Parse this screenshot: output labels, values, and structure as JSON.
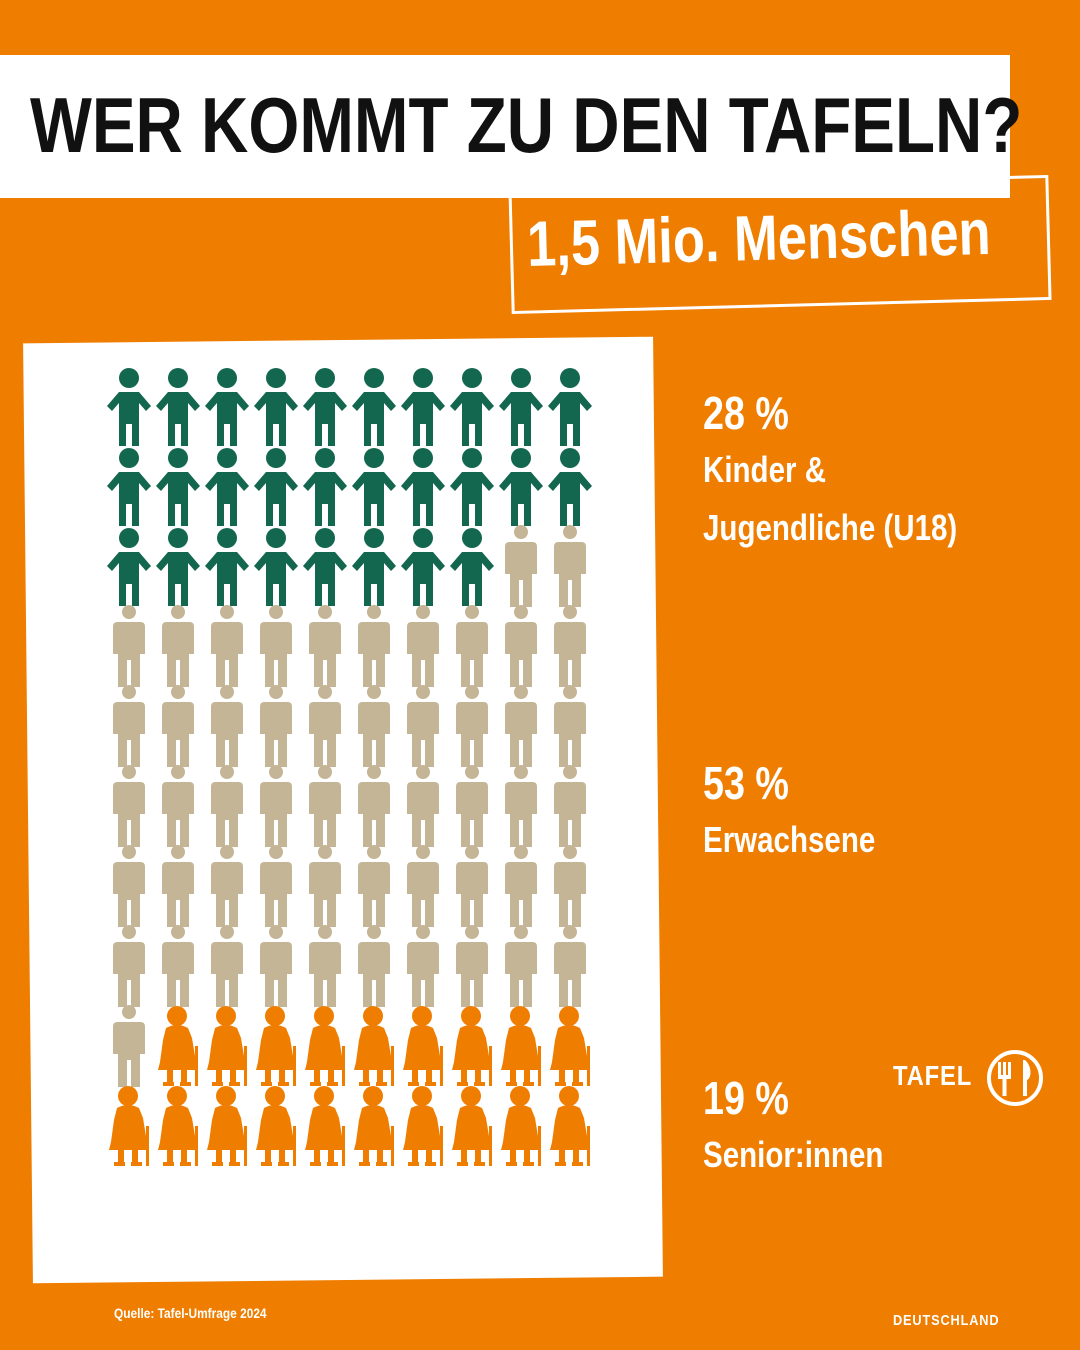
{
  "header": {
    "title": "WER KOMMT ZU DEN TAFELN?",
    "subtitle": "1,5 Mio. Menschen"
  },
  "colors": {
    "background": "#ef7d00",
    "children": "#14674f",
    "adults": "#c4b596",
    "seniors": "#ef7d00"
  },
  "icons": {
    "children": "child-figure-icon",
    "adults": "adult-figure-icon",
    "seniors": "senior-figure-icon"
  },
  "groups": [
    {
      "key": "children",
      "percent": "28 %",
      "label_lines": [
        "Kinder &",
        "Jugendliche (U18)"
      ],
      "count": 28
    },
    {
      "key": "adults",
      "percent": "53 %",
      "label_lines": [
        "Erwachsene"
      ],
      "count": 53
    },
    {
      "key": "seniors",
      "percent": "19 %",
      "label_lines": [
        "Senior:innen"
      ],
      "count": 19
    }
  ],
  "source": "Quelle: Tafel-Umfrage 2024",
  "logo": {
    "name": "TAFEL",
    "sub": "DEUTSCHLAND"
  }
}
